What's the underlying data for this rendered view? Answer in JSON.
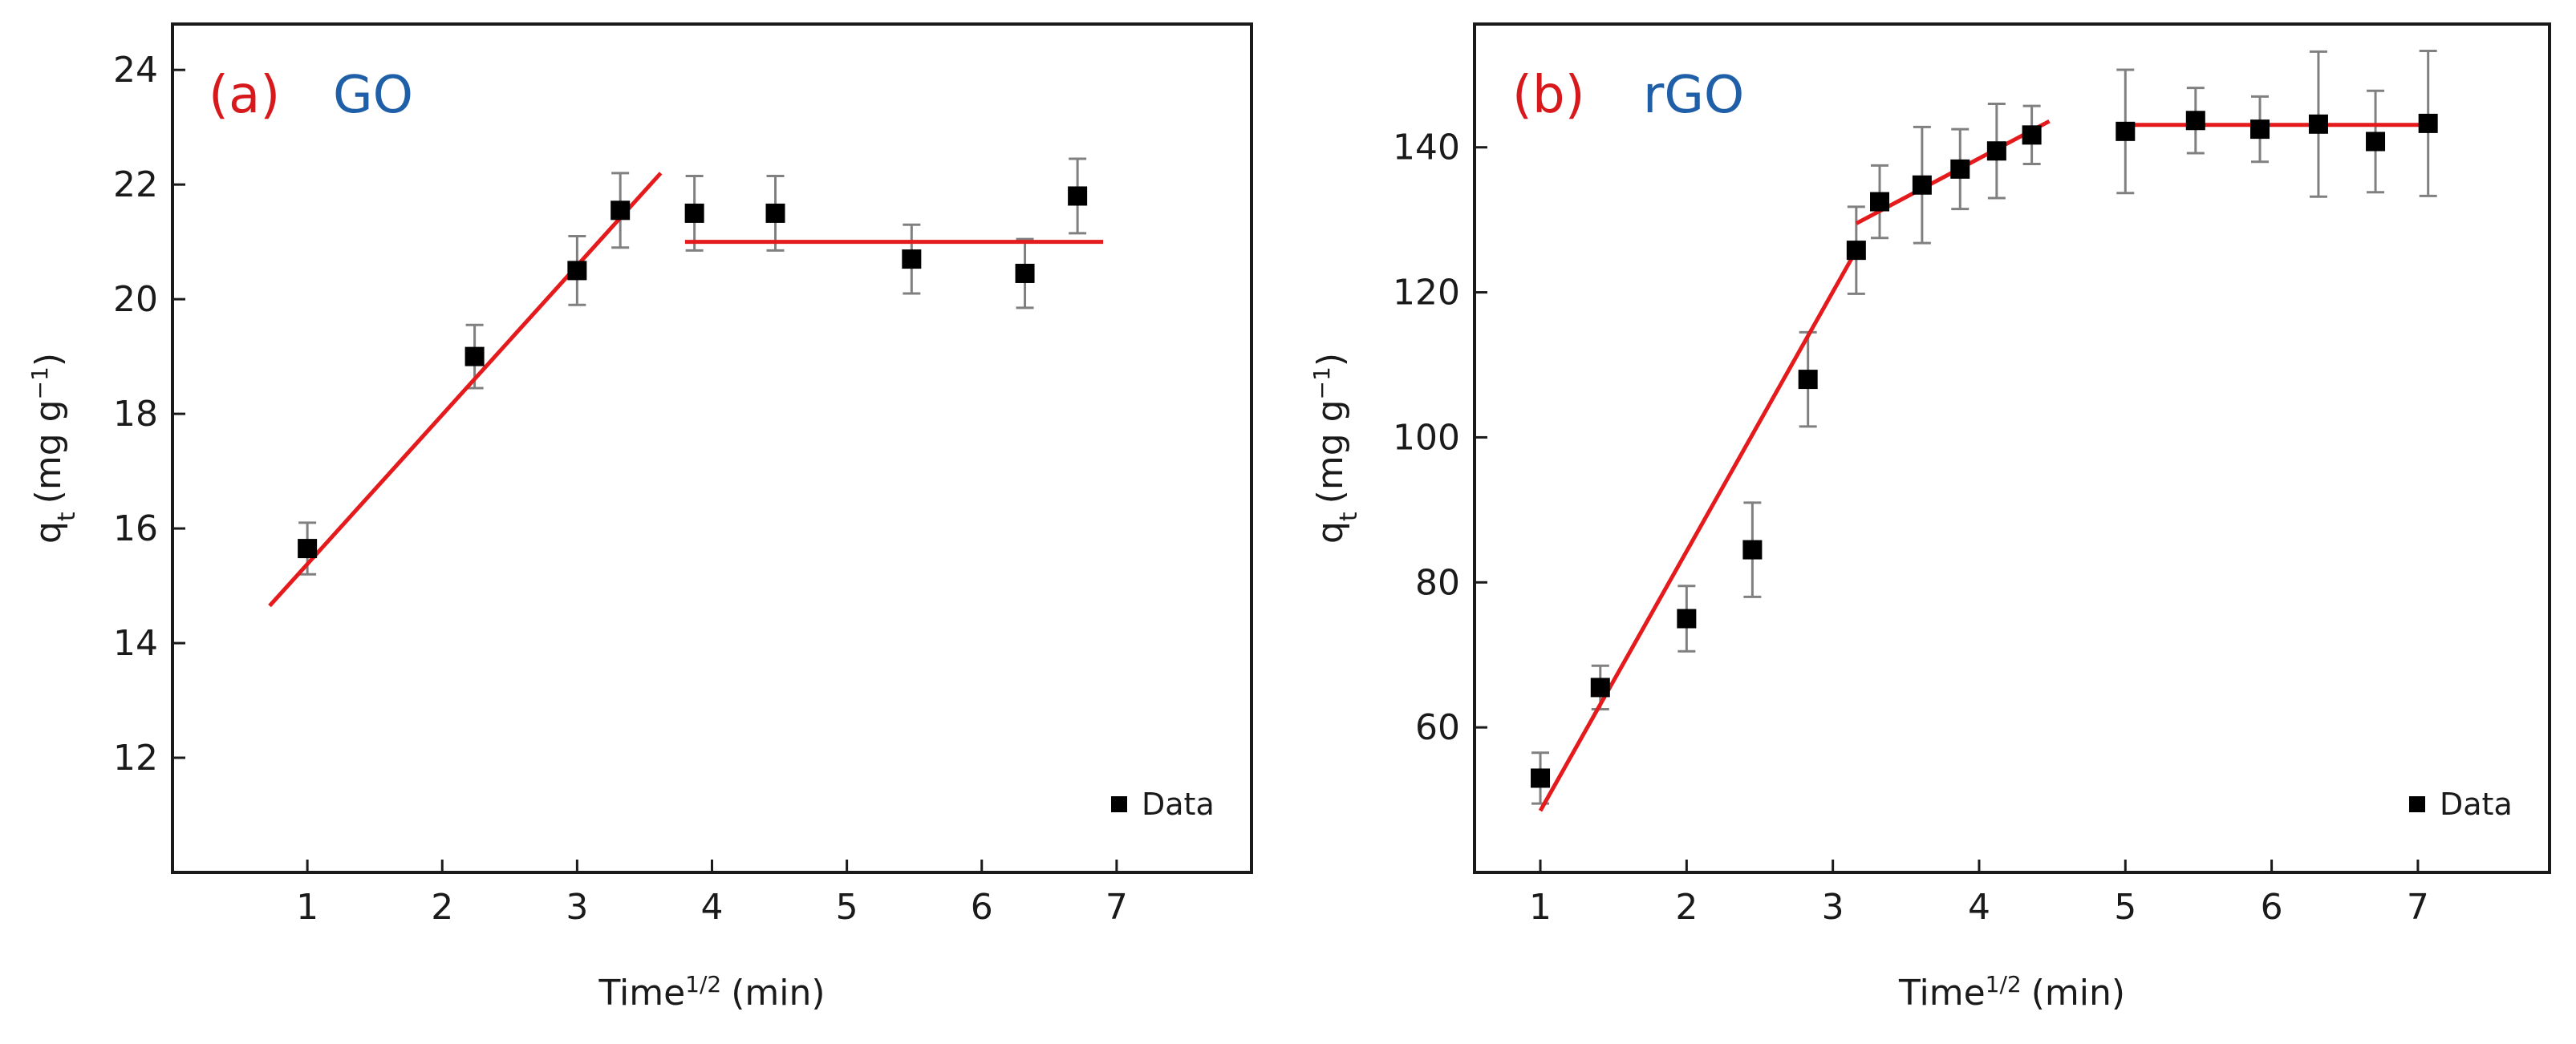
{
  "chart_data": [
    {
      "type": "scatter",
      "panel_label": "(a)",
      "title": "GO",
      "xlabel": {
        "main": "Time",
        "sup": "1/2",
        "unit": "(min)"
      },
      "ylabel": {
        "main": "q",
        "sub": "t",
        "unit_pre": "(mg g",
        "unit_sup": "−1",
        "unit_post": ")"
      },
      "xlim": [
        0,
        8
      ],
      "ylim": [
        10,
        24.8
      ],
      "xticks": [
        1,
        2,
        3,
        4,
        5,
        6,
        7
      ],
      "yticks": [
        12,
        14,
        16,
        18,
        20,
        22,
        24
      ],
      "legend": {
        "label": "Data",
        "placement": "bottom-right"
      },
      "series": [
        {
          "name": "Data",
          "x": [
            1.0,
            2.24,
            3.0,
            3.32,
            3.87,
            4.47,
            5.48,
            6.32,
            6.71
          ],
          "y": [
            15.65,
            19.0,
            20.5,
            21.55,
            21.5,
            21.5,
            20.7,
            20.45,
            21.8
          ],
          "err": [
            0.45,
            0.55,
            0.6,
            0.65,
            0.65,
            0.65,
            0.6,
            0.6,
            0.65
          ]
        }
      ],
      "fit_lines": [
        {
          "x": [
            0.72,
            3.62
          ],
          "y": [
            14.65,
            22.2
          ]
        },
        {
          "x": [
            3.8,
            6.9
          ],
          "y": [
            21.0,
            21.0
          ]
        }
      ],
      "colors": {
        "marker": "#000000",
        "fit": "#e41a1c",
        "error_bar": "#808080",
        "panel_letter": "#d7191c",
        "panel_name": "#1f5fa8"
      }
    },
    {
      "type": "scatter",
      "panel_label": "(b)",
      "title": "rGO",
      "xlabel": {
        "main": "Time",
        "sup": "1/2",
        "unit": "(min)"
      },
      "ylabel": {
        "main": "q",
        "sub": "t",
        "unit_pre": "(mg g",
        "unit_sup": "−1",
        "unit_post": ")"
      },
      "xlim": [
        0.55,
        7.9
      ],
      "ylim": [
        40,
        157
      ],
      "xticks": [
        1,
        2,
        3,
        4,
        5,
        6,
        7
      ],
      "yticks": [
        60,
        80,
        100,
        120,
        140
      ],
      "legend": {
        "label": "Data",
        "placement": "bottom-right"
      },
      "series": [
        {
          "name": "Data",
          "x": [
            1.0,
            1.41,
            2.0,
            2.45,
            2.83,
            3.16,
            3.32,
            3.61,
            3.87,
            4.12,
            4.36,
            5.0,
            5.48,
            5.92,
            6.32,
            6.71,
            7.07
          ],
          "y": [
            53,
            65.5,
            75,
            84.5,
            108,
            125.8,
            132.5,
            134.8,
            137,
            139.5,
            141.7,
            142.2,
            143.7,
            142.5,
            143.2,
            140.8,
            143.3
          ],
          "err": [
            3.5,
            3,
            4.5,
            6.5,
            6.5,
            6,
            5,
            8,
            5.5,
            6.5,
            4,
            8.5,
            4.5,
            4.5,
            10,
            7,
            10
          ]
        }
      ],
      "fit_lines": [
        {
          "x": [
            1.0,
            3.16
          ],
          "y": [
            48.5,
            125.8
          ]
        },
        {
          "x": [
            3.16,
            4.48
          ],
          "y": [
            129.5,
            143.6
          ]
        },
        {
          "x": [
            5.0,
            7.07
          ],
          "y": [
            143.1,
            143.1
          ]
        }
      ],
      "colors": {
        "marker": "#000000",
        "fit": "#e41a1c",
        "error_bar": "#808080",
        "panel_letter": "#d7191c",
        "panel_name": "#1f5fa8"
      }
    }
  ]
}
